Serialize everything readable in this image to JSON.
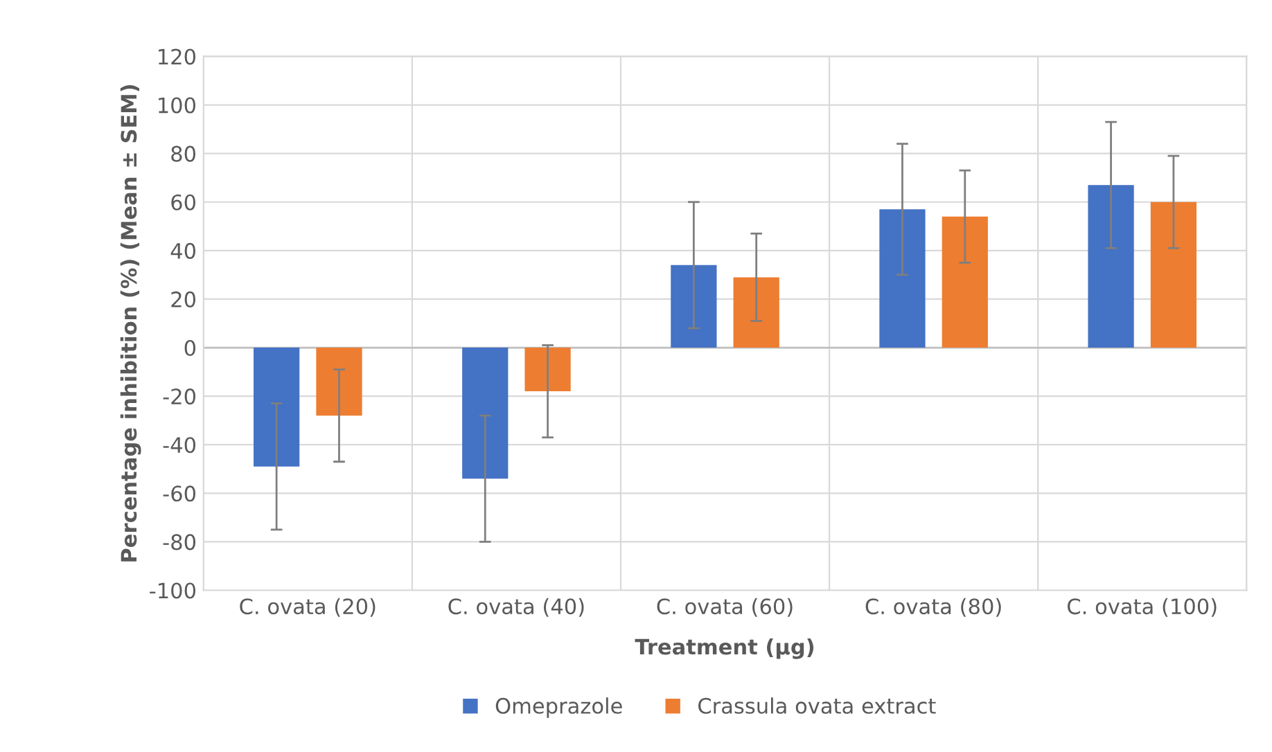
{
  "chart_data": {
    "type": "bar",
    "xlabel": "Treatment (µg)",
    "ylabel": "Percentage inhibition (%) (Mean ± SEM)",
    "categories": [
      "C. ovata (20)",
      "C. ovata (40)",
      "C. ovata (60)",
      "C. ovata (80)",
      "C. ovata (100)"
    ],
    "series": [
      {
        "name": "Omeprazole",
        "color": "#4472c4",
        "values": [
          -49,
          -54,
          34,
          57,
          67
        ],
        "errors": [
          26,
          26,
          26,
          27,
          26
        ]
      },
      {
        "name": "Crassula ovata extract",
        "color": "#ed7d31",
        "values": [
          -28,
          -18,
          29,
          54,
          60
        ],
        "errors": [
          19,
          19,
          18,
          19,
          19
        ]
      }
    ],
    "ylim": [
      -100,
      120
    ],
    "yticks": [
      -100,
      -80,
      -60,
      -40,
      -20,
      0,
      20,
      40,
      60,
      80,
      100,
      120
    ],
    "grid": true,
    "legend": "bottom"
  }
}
